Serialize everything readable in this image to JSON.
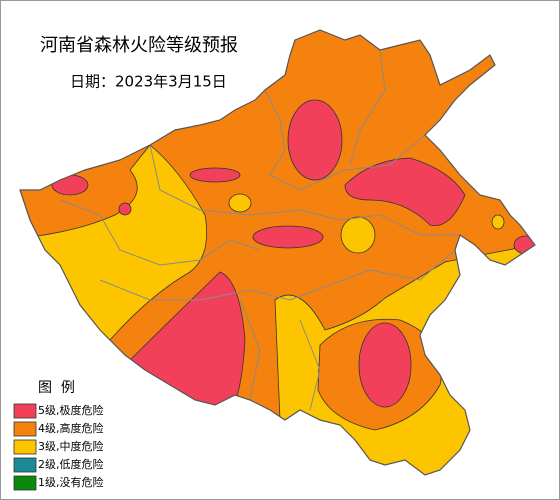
{
  "title": "河南省森林火险等级预报",
  "date": "日期：2023年3月15日",
  "legend": {
    "title": "图  例",
    "items": [
      {
        "label": "5级,极度危险",
        "color": "#f2405a"
      },
      {
        "label": "4级,高度危险",
        "color": "#f5820f"
      },
      {
        "label": "3级,中度危险",
        "color": "#fcc500"
      },
      {
        "label": "2级,低度危险",
        "color": "#1b8a96"
      },
      {
        "label": "1级,没有危险",
        "color": "#0a8a0a"
      }
    ]
  }
}
